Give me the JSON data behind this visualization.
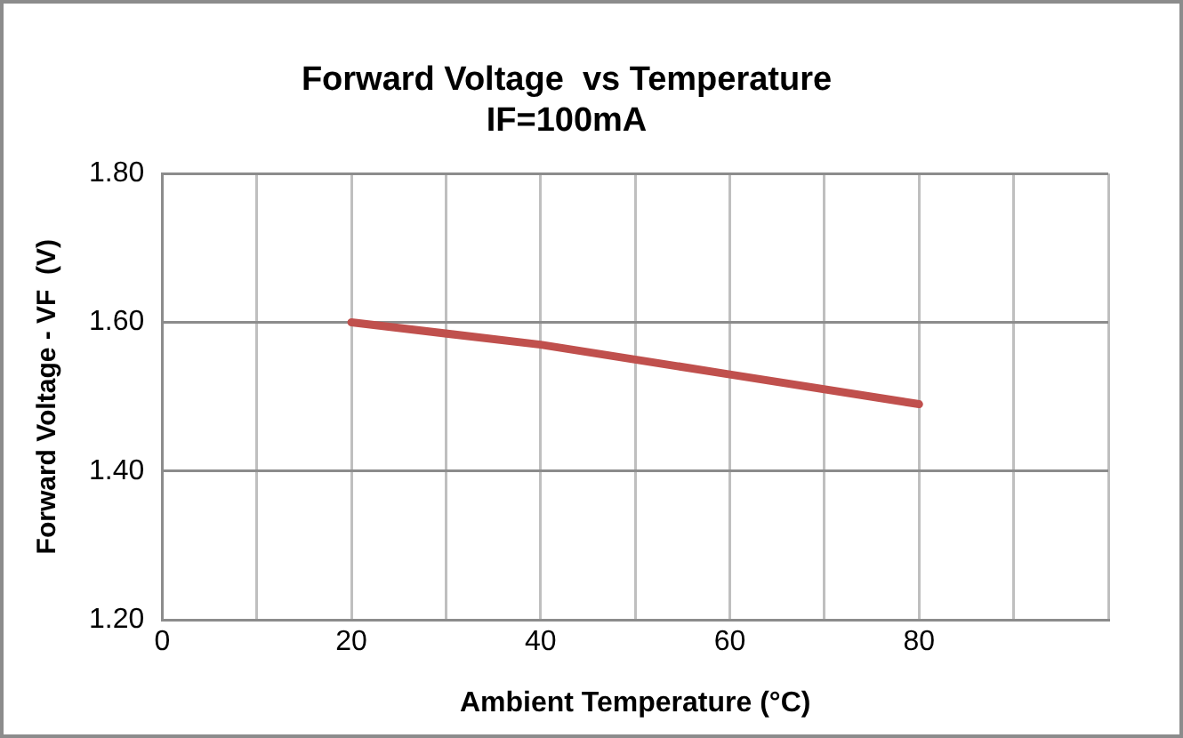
{
  "chart_data": {
    "type": "line",
    "title": "Forward Voltage  vs Temperature",
    "subtitle": "IF=100mA",
    "xlabel": "Ambient Temperature (°C)",
    "ylabel": "Forward Voltage - VF  (V)",
    "x": [
      20,
      40,
      60,
      80
    ],
    "series": [
      {
        "color": "#c0504d",
        "values": [
          1.6,
          1.57,
          1.53,
          1.49
        ]
      }
    ],
    "xlim": [
      0,
      100
    ],
    "xticks": [
      0,
      {
        "value": 10,
        "label": null
      },
      20,
      {
        "value": 30,
        "label": null
      },
      40,
      {
        "value": 50,
        "label": null
      },
      60,
      {
        "value": 70,
        "label": null
      },
      80,
      {
        "value": 90,
        "label": null
      },
      {
        "value": 100,
        "label": null
      }
    ],
    "ylim": [
      1.2,
      1.8
    ],
    "yticks": [
      {
        "value": 1.2,
        "label": "1.20"
      },
      {
        "value": 1.4,
        "label": "1.40"
      },
      {
        "value": 1.6,
        "label": "1.60"
      },
      {
        "value": 1.8,
        "label": "1.80"
      }
    ],
    "grid": true,
    "legend": false,
    "marker": "none",
    "line_style": "solid"
  }
}
